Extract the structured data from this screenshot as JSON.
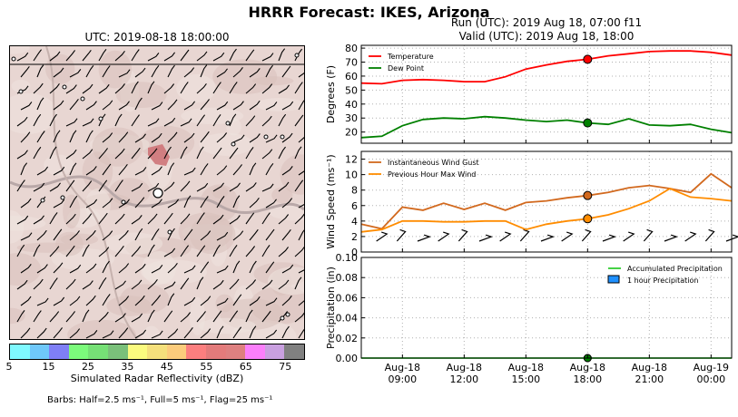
{
  "figure": {
    "suptitle": "HRRR Forecast: IKES, Arizona",
    "map_title": "UTC: 2019-08-18 18:00:00",
    "run_line": "Run (UTC): 2019 Aug 18, 07:00 f11",
    "valid_line": "Valid (UTC): 2019 Aug 18, 18:00",
    "barbs_note": "Barbs: Half=2.5 ms⁻¹, Full=5 ms⁻¹, Flag=25 ms⁻¹"
  },
  "colorbar": {
    "label": "Simulated Radar Reflectivity (dBZ)",
    "ticks": [
      "5",
      "15",
      "25",
      "35",
      "45",
      "55",
      "65",
      "75"
    ],
    "colors": [
      "#7ff9ff",
      "#6fc8fa",
      "#7f7ff6",
      "#7cfb7c",
      "#76e076",
      "#7ac07a",
      "#fbfb7f",
      "#f5e07c",
      "#fccc7c",
      "#fc7f7f",
      "#e37b7b",
      "#de8080",
      "#fb7ffb",
      "#c9a0e0",
      "#808080"
    ]
  },
  "chart_data": [
    {
      "type": "line",
      "x_dates": [
        "Aug-18 07:00",
        "Aug-18 08:00",
        "Aug-18 09:00",
        "Aug-18 10:00",
        "Aug-18 11:00",
        "Aug-18 12:00",
        "Aug-18 13:00",
        "Aug-18 14:00",
        "Aug-18 15:00",
        "Aug-18 16:00",
        "Aug-18 17:00",
        "Aug-18 18:00",
        "Aug-18 19:00",
        "Aug-18 20:00",
        "Aug-18 21:00",
        "Aug-18 22:00",
        "Aug-18 23:00",
        "Aug-19 00:00",
        "Aug-19 01:00"
      ],
      "ylabel": "Degrees (F)",
      "ylim": [
        12,
        82
      ],
      "yticks": [
        "20",
        "30",
        "40",
        "50",
        "60",
        "70",
        "80"
      ],
      "highlight_index": 11,
      "legend": "top-left",
      "grid": true,
      "series": [
        {
          "name": "Temperature",
          "color": "#ff0000",
          "values": [
            55,
            54.5,
            57,
            57.5,
            57,
            56,
            56,
            59.5,
            65,
            68,
            70.5,
            72,
            74.5,
            76,
            77.5,
            78,
            78,
            77,
            75
          ]
        },
        {
          "name": "Dew Point",
          "color": "#008000",
          "values": [
            16,
            17,
            24.5,
            29,
            30,
            29.5,
            31,
            30,
            28.5,
            27.5,
            28.5,
            26.5,
            25.5,
            29.5,
            25,
            24.5,
            25.5,
            22,
            19.5
          ]
        }
      ]
    },
    {
      "type": "line",
      "ylabel": "Wind Speed (ms⁻¹)",
      "ylim": [
        0,
        13
      ],
      "yticks": [
        "0",
        "2",
        "4",
        "6",
        "8",
        "10",
        "12"
      ],
      "highlight_index": 11,
      "legend": "top-left",
      "grid": true,
      "series": [
        {
          "name": "Instantaneous Wind Gust",
          "color": "#d2691e",
          "values": [
            3.6,
            3.0,
            5.8,
            5.4,
            6.3,
            5.5,
            6.3,
            5.4,
            6.4,
            6.6,
            7.0,
            7.3,
            7.7,
            8.3,
            8.6,
            8.2,
            7.7,
            10.1,
            8.3
          ]
        },
        {
          "name": "Previous Hour Max Wind",
          "color": "#ff8c00",
          "values": [
            2.6,
            2.9,
            4.0,
            4.0,
            3.9,
            3.9,
            4.0,
            4.0,
            2.9,
            3.6,
            4.0,
            4.3,
            4.8,
            5.6,
            6.6,
            8.2,
            7.1,
            6.9,
            6.6
          ]
        }
      ]
    },
    {
      "type": "bar",
      "ylabel": "Precipitation (in)",
      "ylim": [
        0,
        0.1
      ],
      "yticks": [
        "0.00",
        "0.02",
        "0.04",
        "0.06",
        "0.08",
        "0.10"
      ],
      "xtick_labels": [
        [
          "Aug-18",
          "09:00"
        ],
        [
          "Aug-18",
          "12:00"
        ],
        [
          "Aug-18",
          "15:00"
        ],
        [
          "Aug-18",
          "18:00"
        ],
        [
          "Aug-18",
          "21:00"
        ],
        [
          "Aug-19",
          "00:00"
        ]
      ],
      "xtick_index": [
        2,
        5,
        8,
        11,
        14,
        17
      ],
      "highlight_index": 11,
      "legend": "top-right",
      "grid": true,
      "series": [
        {
          "name": "Accumulated Precipitation",
          "color": "#32cd32",
          "values": [
            0,
            0,
            0,
            0,
            0,
            0,
            0,
            0,
            0,
            0,
            0,
            0,
            0,
            0,
            0,
            0,
            0,
            0,
            0
          ]
        },
        {
          "name": "1 hour Precipitation",
          "color": "#1e90ff",
          "values": [
            0,
            0,
            0,
            0,
            0,
            0,
            0,
            0,
            0,
            0,
            0,
            0,
            0,
            0,
            0,
            0,
            0,
            0,
            0
          ]
        }
      ]
    }
  ]
}
